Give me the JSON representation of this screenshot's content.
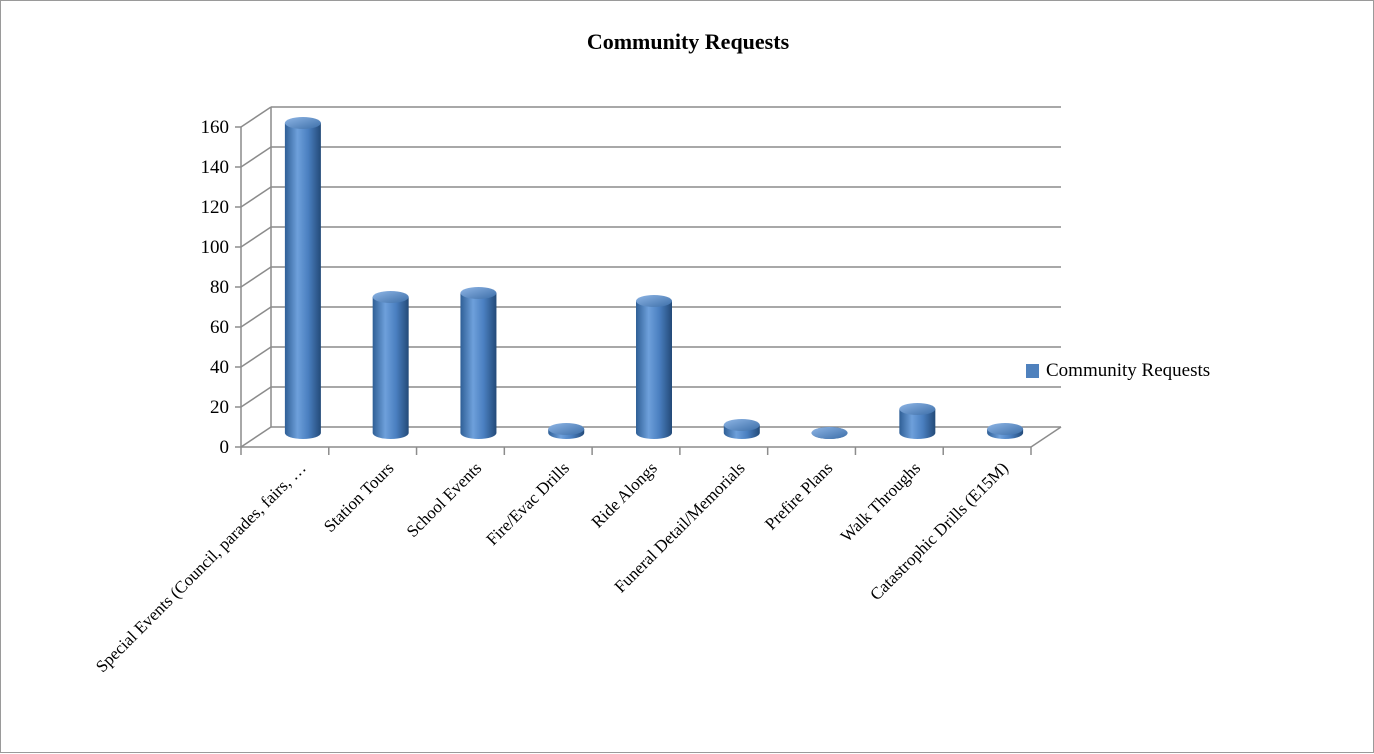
{
  "chart_data": {
    "type": "bar",
    "title": "Community Requests",
    "xlabel": "",
    "ylabel": "",
    "ylim": [
      0,
      160
    ],
    "yticks": [
      0,
      20,
      40,
      60,
      80,
      100,
      120,
      140,
      160
    ],
    "categories": [
      "Special Events (Council, parades, fairs, …",
      "Station Tours",
      "School Events",
      "Fire/Evac Drills",
      "Ride Alongs",
      "Funeral Detail/Memorials",
      "Prefire Plans",
      "Walk Throughs",
      "Catastrophic Drills (E15M)"
    ],
    "series": [
      {
        "name": "Community Requests",
        "color": "#4f81bd",
        "values": [
          155,
          68,
          70,
          2,
          66,
          4,
          0,
          12,
          2
        ]
      }
    ],
    "legend": {
      "position": "right"
    },
    "grid": true
  }
}
